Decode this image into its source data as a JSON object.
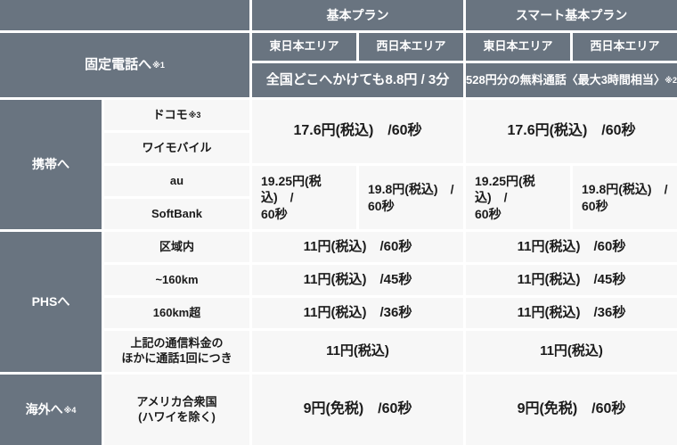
{
  "colors": {
    "header_bg": "#697480",
    "cell_bg": "#F7F7F7",
    "divider": "#FFFFFF",
    "header_text": "#FFFFFF",
    "cell_text": "#1B1B1B"
  },
  "header": {
    "plan1": "基本プラン",
    "plan2": "スマート基本プラン",
    "area_east": "東日本エリア",
    "area_west": "西日本エリア"
  },
  "landline": {
    "label": "固定電話へ",
    "sup": "※1",
    "plan1_note": "全国どこへかけても8.8円 / 3分",
    "plan2_note": "528円分の無料通話〈最大3時間相当〉",
    "plan2_sup": "※2"
  },
  "mobile": {
    "label": "携帯へ",
    "carriers": [
      "ドコモ",
      "ワイモバイル",
      "au",
      "SoftBank"
    ],
    "docomo_sup": "※3",
    "docomo_ymobile_price": {
      "plan1": "17.6円(税込)　/60秒",
      "plan2": "17.6円(税込)　/60秒"
    },
    "au_softbank_price": {
      "plan1_east": "19.25円(税込)　/\n60秒",
      "plan1_west": "19.8円(税込)　/\n60秒",
      "plan2_east": "19.25円(税込)　/\n60秒",
      "plan2_west": "19.8円(税込)　/\n60秒"
    }
  },
  "phs": {
    "label": "PHSへ",
    "items": [
      {
        "label": "区域内",
        "plan1": "11円(税込)　/60秒",
        "plan2": "11円(税込)　/60秒"
      },
      {
        "label": "~160km",
        "plan1": "11円(税込)　/45秒",
        "plan2": "11円(税込)　/45秒"
      },
      {
        "label": "160km超",
        "plan1": "11円(税込)　/36秒",
        "plan2": "11円(税込)　/36秒"
      },
      {
        "label": "上記の通信料金の\nほかに通話1回につき",
        "plan1": "11円(税込)",
        "plan2": "11円(税込)"
      }
    ]
  },
  "overseas": {
    "label": "海外へ",
    "sup": "※4",
    "destination": "アメリカ合衆国\n(ハワイを除く)",
    "plan1": "9円(免税)　/60秒",
    "plan2": "9円(免税)　/60秒"
  }
}
